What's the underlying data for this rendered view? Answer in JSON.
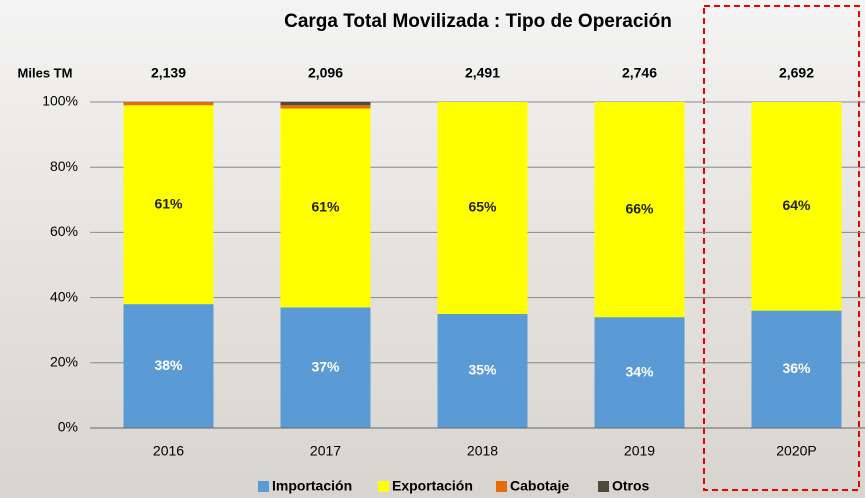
{
  "chart_data": {
    "type": "stacked_bar",
    "title": "Carga Total Movilizada : Tipo de Operación",
    "categories": [
      "2016",
      "2017",
      "2018",
      "2019",
      "2020P"
    ],
    "series": [
      {
        "name": "Importación",
        "color": "#5b9bd5",
        "values": [
          38,
          37,
          35,
          34,
          36
        ],
        "value_labels": [
          "38%",
          "37%",
          "35%",
          "34%",
          "36%"
        ]
      },
      {
        "name": "Exportación",
        "color": "#ffff00",
        "values": [
          61,
          61,
          65,
          66,
          64
        ],
        "value_labels": [
          "61%",
          "61%",
          "65%",
          "66%",
          "64%"
        ]
      },
      {
        "name": "Cabotaje",
        "color": "#e46c0a",
        "values": [
          1,
          1,
          0,
          0,
          0
        ]
      },
      {
        "name": "Otros",
        "color": "#4f4a3a",
        "values": [
          0,
          1,
          0,
          0,
          0
        ]
      }
    ],
    "totals": {
      "name": "Miles TM",
      "values": [
        2139,
        2096,
        2491,
        2746,
        2692
      ],
      "value_labels": [
        "2,139",
        "2,096",
        "2,491",
        "2,746",
        "2,692"
      ]
    },
    "ylim": [
      0,
      100
    ],
    "yticks": [
      {
        "value": 0,
        "label": "0%"
      },
      {
        "value": 20,
        "label": "20%"
      },
      {
        "value": 40,
        "label": "40%"
      },
      {
        "value": 60,
        "label": "60%"
      },
      {
        "value": 80,
        "label": "80%"
      },
      {
        "value": 100,
        "label": "100%"
      }
    ],
    "grid": true
  }
}
